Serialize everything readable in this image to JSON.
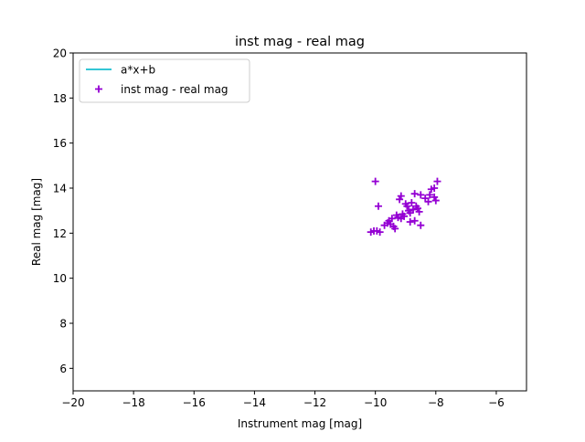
{
  "chart_data": {
    "type": "scatter",
    "title": "inst mag - real mag",
    "xlabel": "Instrument mag [mag]",
    "ylabel": "Real mag [mag]",
    "xlim": [
      -20,
      -5
    ],
    "ylim": [
      5,
      20
    ],
    "xticks": [
      -20,
      -18,
      -16,
      -14,
      -12,
      -10,
      -8,
      -6
    ],
    "yticks": [
      6,
      8,
      10,
      12,
      14,
      16,
      18,
      20
    ],
    "grid": false,
    "legend_position": "top-left",
    "colors": {
      "fit_line": "#17becf",
      "points": "#9400d3"
    },
    "series": [
      {
        "name": "a*x+b",
        "kind": "line",
        "x": [],
        "y": []
      },
      {
        "name": "inst mag - real mag",
        "kind": "scatter",
        "marker": "+",
        "points": [
          [
            -10.0,
            14.3
          ],
          [
            -10.15,
            12.05
          ],
          [
            -10.05,
            12.1
          ],
          [
            -9.95,
            12.1
          ],
          [
            -9.85,
            12.05
          ],
          [
            -9.9,
            13.2
          ],
          [
            -9.7,
            12.35
          ],
          [
            -9.6,
            12.45
          ],
          [
            -9.55,
            12.55
          ],
          [
            -9.5,
            12.4
          ],
          [
            -9.45,
            12.65
          ],
          [
            -9.4,
            12.3
          ],
          [
            -9.35,
            12.2
          ],
          [
            -9.3,
            12.8
          ],
          [
            -9.25,
            12.7
          ],
          [
            -9.2,
            13.5
          ],
          [
            -9.15,
            13.65
          ],
          [
            -9.15,
            12.65
          ],
          [
            -9.1,
            12.85
          ],
          [
            -9.05,
            12.75
          ],
          [
            -9.0,
            13.3
          ],
          [
            -8.95,
            13.2
          ],
          [
            -8.9,
            13.0
          ],
          [
            -8.85,
            12.5
          ],
          [
            -8.85,
            12.9
          ],
          [
            -8.8,
            13.35
          ],
          [
            -8.75,
            13.05
          ],
          [
            -8.7,
            13.75
          ],
          [
            -8.7,
            12.55
          ],
          [
            -8.65,
            13.2
          ],
          [
            -8.6,
            13.1
          ],
          [
            -8.55,
            12.95
          ],
          [
            -8.5,
            13.7
          ],
          [
            -8.5,
            12.35
          ],
          [
            -8.35,
            13.55
          ],
          [
            -8.25,
            13.4
          ],
          [
            -8.2,
            13.7
          ],
          [
            -8.15,
            13.95
          ],
          [
            -8.05,
            14.0
          ],
          [
            -8.05,
            13.6
          ],
          [
            -8.0,
            13.45
          ],
          [
            -7.95,
            14.3
          ]
        ]
      }
    ]
  }
}
